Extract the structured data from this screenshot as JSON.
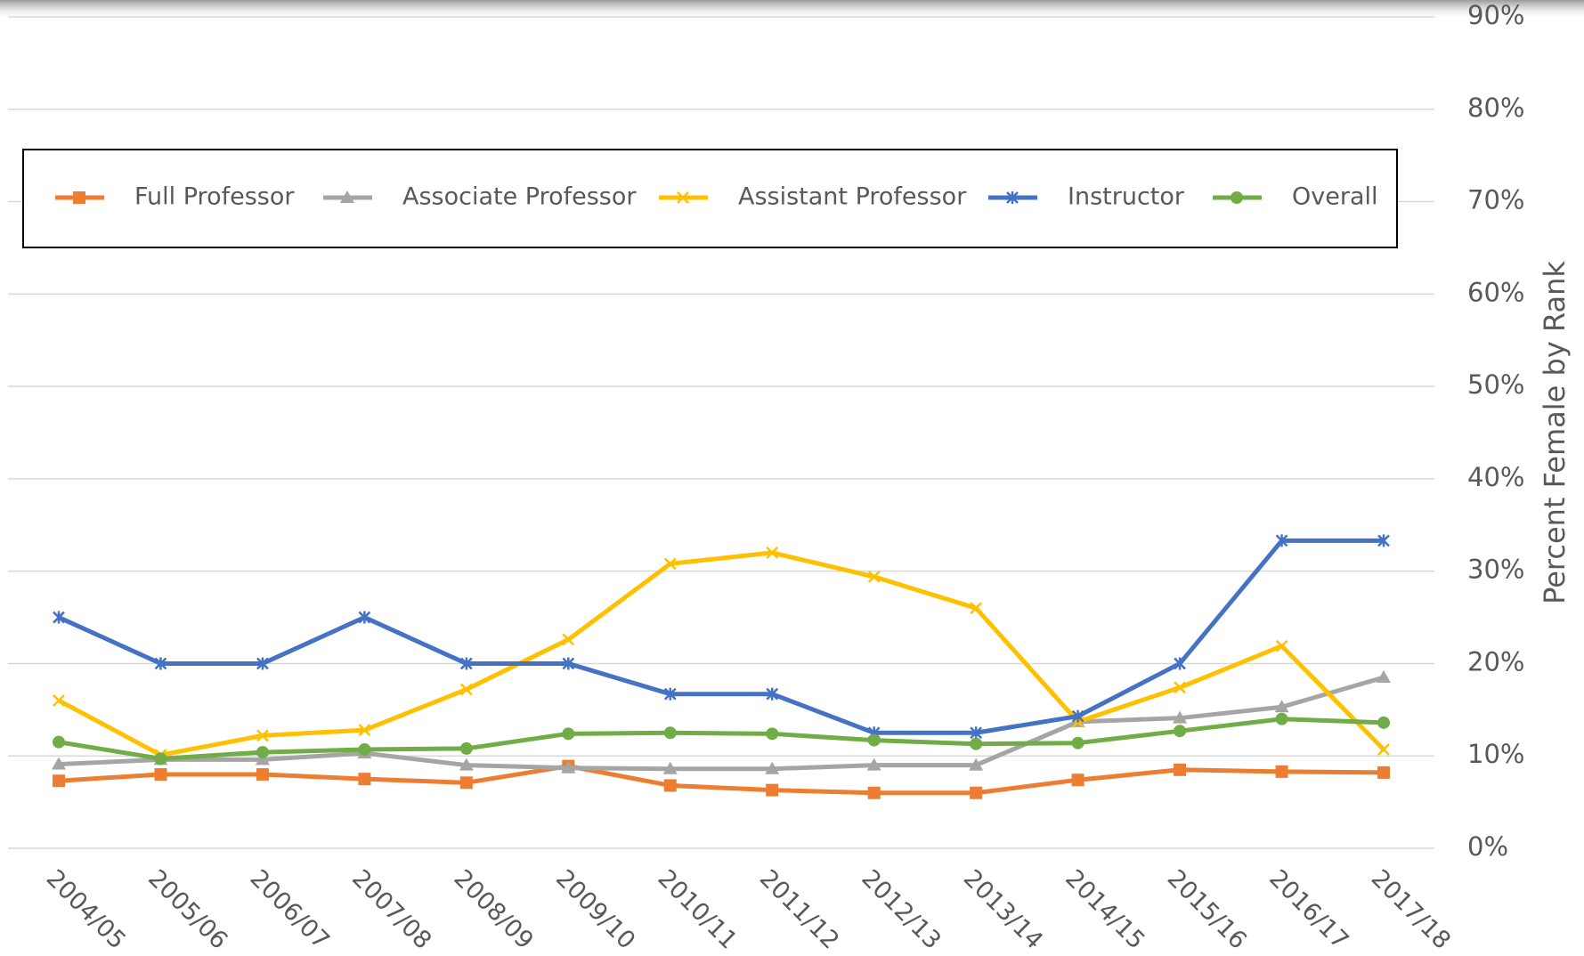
{
  "chart_data": {
    "type": "line",
    "y_axis_label": "Percent Female by Rank",
    "categories": [
      "2004/05",
      "2005/06",
      "2006/07",
      "2007/08",
      "2008/09",
      "2009/10",
      "2010/11",
      "2011/12",
      "2012/13",
      "2013/14",
      "2014/15",
      "2015/16",
      "2016/17",
      "2017/18"
    ],
    "series": [
      {
        "name": "Full Professor",
        "color": "#ed7d31",
        "marker": "square",
        "values": [
          7.3,
          8.0,
          8.0,
          7.5,
          7.1,
          8.9,
          6.8,
          6.3,
          6.0,
          6.0,
          7.4,
          8.5,
          8.3,
          8.2
        ]
      },
      {
        "name": "Associate Professor",
        "color": "#a5a5a5",
        "marker": "triangle",
        "values": [
          9.1,
          9.6,
          9.6,
          10.3,
          9.0,
          8.7,
          8.6,
          8.6,
          9.0,
          9.0,
          13.7,
          14.1,
          15.3,
          18.5
        ]
      },
      {
        "name": "Assistant Professor",
        "color": "#ffc000",
        "marker": "x",
        "values": [
          16.0,
          10.1,
          12.2,
          12.8,
          17.2,
          22.6,
          30.8,
          32.0,
          29.4,
          26.0,
          13.7,
          17.4,
          21.9,
          10.7
        ]
      },
      {
        "name": "Instructor",
        "color": "#4472c4",
        "marker": "star",
        "values": [
          25.0,
          20.0,
          20.0,
          25.0,
          20.0,
          20.0,
          16.7,
          16.7,
          12.5,
          12.5,
          14.3,
          20.0,
          33.3,
          33.3
        ]
      },
      {
        "name": "Overall",
        "color": "#70ad47",
        "marker": "circle",
        "values": [
          11.5,
          9.7,
          10.4,
          10.7,
          10.8,
          12.4,
          12.5,
          12.4,
          11.7,
          11.3,
          11.4,
          12.7,
          14.0,
          13.6
        ]
      }
    ],
    "ylim": [
      0,
      90
    ],
    "yticks": [
      {
        "value": 0,
        "label": "0%"
      },
      {
        "value": 10,
        "label": "10%"
      },
      {
        "value": 20,
        "label": "20%"
      },
      {
        "value": 30,
        "label": "30%"
      },
      {
        "value": 40,
        "label": "40%"
      },
      {
        "value": 50,
        "label": "50%"
      },
      {
        "value": 60,
        "label": "60%"
      },
      {
        "value": 70,
        "label": "70%"
      },
      {
        "value": 80,
        "label": "80%"
      },
      {
        "value": 90,
        "label": "90%"
      }
    ],
    "grid": true,
    "legend": "top"
  }
}
